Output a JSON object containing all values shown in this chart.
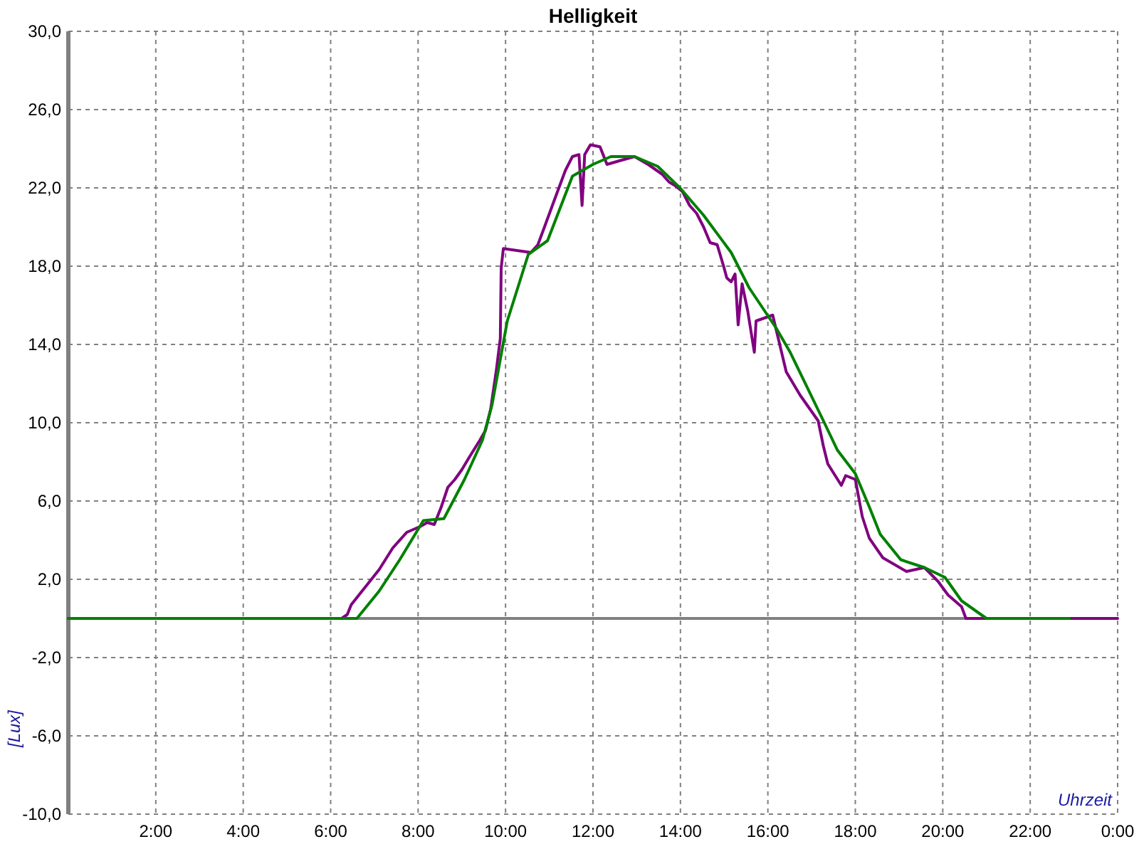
{
  "chart_data": {
    "type": "line",
    "title": "Helligkeit",
    "xlabel": "Uhrzeit",
    "ylabel": "[Lux]",
    "xlim": [
      0,
      24
    ],
    "xticks": [
      {
        "value": 0,
        "label": null
      },
      {
        "value": 2,
        "label": "2:00"
      },
      {
        "value": 4,
        "label": "4:00"
      },
      {
        "value": 6,
        "label": "6:00"
      },
      {
        "value": 8,
        "label": "8:00"
      },
      {
        "value": 10,
        "label": "10:00"
      },
      {
        "value": 12,
        "label": "12:00"
      },
      {
        "value": 14,
        "label": "14:00"
      },
      {
        "value": 16,
        "label": "16:00"
      },
      {
        "value": 18,
        "label": "18:00"
      },
      {
        "value": 20,
        "label": "20:00"
      },
      {
        "value": 22,
        "label": "22:00"
      },
      {
        "value": 24,
        "label": "0:00"
      }
    ],
    "ylim": [
      -10,
      30
    ],
    "yticks": [
      {
        "value": -10,
        "label": "-10,0"
      },
      {
        "value": -6,
        "label": "-6,0"
      },
      {
        "value": -2,
        "label": "-2,0"
      },
      {
        "value": 2,
        "label": "2,0"
      },
      {
        "value": 6,
        "label": "6,0"
      },
      {
        "value": 10,
        "label": "10,0"
      },
      {
        "value": 14,
        "label": "14,0"
      },
      {
        "value": 18,
        "label": "18,0"
      },
      {
        "value": 22,
        "label": "22,0"
      },
      {
        "value": 26,
        "label": "26,0"
      },
      {
        "value": 30,
        "label": "30,0"
      }
    ],
    "grid": true,
    "line_style": "solid",
    "ref_lines": [
      {
        "axis": "y",
        "value": 0,
        "color": "#808080"
      }
    ],
    "series": [
      {
        "color": "#800080",
        "x": [
          0,
          6.25,
          6.38,
          6.47,
          6.79,
          7.11,
          7.42,
          7.74,
          8.05,
          8.21,
          8.37,
          8.53,
          8.68,
          8.84,
          9.0,
          9.16,
          9.41,
          9.54,
          9.66,
          9.79,
          9.88,
          9.9,
          9.95,
          10.26,
          10.58,
          10.74,
          10.89,
          11.12,
          11.37,
          11.53,
          11.68,
          11.75,
          11.81,
          11.94,
          12.16,
          12.32,
          12.63,
          12.95,
          13.26,
          13.58,
          13.74,
          13.89,
          14.05,
          14.21,
          14.37,
          14.53,
          14.68,
          14.84,
          15.0,
          15.06,
          15.16,
          15.25,
          15.32,
          15.41,
          15.54,
          15.69,
          15.73,
          16.11,
          16.26,
          16.42,
          16.74,
          17.15,
          17.27,
          17.37,
          17.68,
          17.78,
          18.0,
          18.16,
          18.32,
          18.63,
          19.17,
          19.58,
          19.89,
          20.12,
          20.43,
          20.53,
          20.94,
          24
        ],
        "values": [
          0,
          0,
          0.2,
          0.7,
          1.6,
          2.5,
          3.6,
          4.4,
          4.7,
          4.9,
          4.8,
          5.7,
          6.7,
          7.1,
          7.6,
          8.2,
          9.1,
          9.6,
          10.7,
          12.7,
          14.3,
          17.9,
          18.9,
          18.8,
          18.7,
          19.1,
          20.0,
          21.4,
          22.9,
          23.6,
          23.7,
          21.1,
          23.7,
          24.2,
          24.1,
          23.2,
          23.4,
          23.6,
          23.2,
          22.7,
          22.3,
          22.1,
          21.8,
          21.1,
          20.7,
          20.0,
          19.2,
          19.1,
          17.9,
          17.4,
          17.2,
          17.6,
          15.0,
          17.1,
          15.7,
          13.6,
          15.2,
          15.5,
          14.1,
          12.6,
          11.4,
          10.1,
          8.8,
          7.9,
          6.8,
          7.3,
          7.1,
          5.2,
          4.1,
          3.1,
          2.4,
          2.6,
          1.9,
          1.2,
          0.6,
          0,
          0,
          0
        ]
      },
      {
        "color": "#008000",
        "x": [
          0,
          6.6,
          7.11,
          7.58,
          8.12,
          8.59,
          9.06,
          9.47,
          9.69,
          9.95,
          10.04,
          10.52,
          10.96,
          11.53,
          12.0,
          12.41,
          12.95,
          13.48,
          13.99,
          14.53,
          15.16,
          15.57,
          16.2,
          16.51,
          17.27,
          17.59,
          18.0,
          18.32,
          18.57,
          19.04,
          19.58,
          20.05,
          20.43,
          21.0,
          22.9
        ],
        "values": [
          0,
          0,
          1.4,
          3.0,
          5.0,
          5.1,
          7.1,
          9.1,
          10.9,
          14.1,
          15.2,
          18.6,
          19.3,
          22.6,
          23.2,
          23.6,
          23.6,
          23.1,
          22.0,
          20.6,
          18.7,
          16.9,
          14.8,
          13.6,
          10.1,
          8.6,
          7.4,
          5.7,
          4.3,
          3.0,
          2.6,
          2.1,
          0.9,
          0,
          0
        ]
      }
    ]
  }
}
